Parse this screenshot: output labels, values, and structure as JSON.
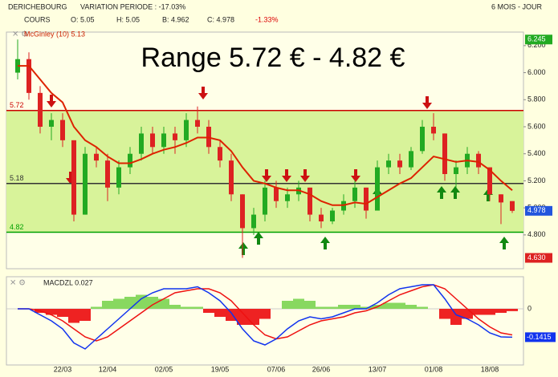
{
  "header": {
    "symbol": "DERICHEBOURG",
    "variation": "VARIATION PERIODE : -17.03%",
    "period": "6 MOIS - JOUR",
    "cours": "COURS",
    "open": "O: 5.05",
    "high": "H: 5.05",
    "low": "B: 4.962",
    "close": "C: 4.978",
    "change": "-1.33%"
  },
  "chart_data": [
    {
      "type": "candlestick",
      "title": "Range 5.72 € - 4.82 €",
      "indicator_label": "McGinley (10) 5.13",
      "categories": [
        null,
        null,
        null,
        null,
        "22/03",
        null,
        null,
        null,
        "12/04",
        null,
        null,
        null,
        null,
        "02/05",
        null,
        null,
        null,
        null,
        "19/05",
        null,
        null,
        null,
        null,
        "07/06",
        null,
        null,
        null,
        "26/06",
        null,
        null,
        null,
        null,
        "13/07",
        null,
        null,
        null,
        null,
        "01/08",
        null,
        null,
        null,
        null,
        "18/08",
        null,
        null
      ],
      "open": [
        6.0,
        6.1,
        5.85,
        5.6,
        5.65,
        5.5,
        4.95,
        5.4,
        5.35,
        5.15,
        5.3,
        5.4,
        5.55,
        5.45,
        5.55,
        5.5,
        5.65,
        5.6,
        5.45,
        5.35,
        5.1,
        4.85,
        4.95,
        5.15,
        5.05,
        5.1,
        5.15,
        4.95,
        4.9,
        4.98,
        5.05,
        5.15,
        4.98,
        5.3,
        5.35,
        5.3,
        5.42,
        5.6,
        5.55,
        5.25,
        5.3,
        5.4,
        5.3,
        5.1,
        5.05
      ],
      "high": [
        6.245,
        6.15,
        5.9,
        5.7,
        5.7,
        5.5,
        5.45,
        5.45,
        5.4,
        5.35,
        5.45,
        5.6,
        5.6,
        5.6,
        5.6,
        5.7,
        5.75,
        5.65,
        5.5,
        5.4,
        5.1,
        5.0,
        5.2,
        5.2,
        5.15,
        5.2,
        5.15,
        5.0,
        5.0,
        5.1,
        5.2,
        5.15,
        5.35,
        5.4,
        5.4,
        5.45,
        5.65,
        5.7,
        5.55,
        5.35,
        5.45,
        5.42,
        5.3,
        5.1,
        5.05
      ],
      "low": [
        5.95,
        5.8,
        5.55,
        5.5,
        5.45,
        4.9,
        4.95,
        5.3,
        5.05,
        5.1,
        5.25,
        5.35,
        5.4,
        5.4,
        5.4,
        5.45,
        5.55,
        5.4,
        5.3,
        5.05,
        4.63,
        4.8,
        4.9,
        5.0,
        5.0,
        5.05,
        4.9,
        4.85,
        4.88,
        4.95,
        5.0,
        4.92,
        4.98,
        5.25,
        5.25,
        5.28,
        5.4,
        5.5,
        5.2,
        5.15,
        5.25,
        5.25,
        5.05,
        4.88,
        4.962
      ],
      "close": [
        6.1,
        5.85,
        5.6,
        5.65,
        5.5,
        4.95,
        5.4,
        5.35,
        5.15,
        5.3,
        5.4,
        5.55,
        5.45,
        5.55,
        5.5,
        5.65,
        5.6,
        5.45,
        5.35,
        5.1,
        4.85,
        4.95,
        5.15,
        5.05,
        5.1,
        5.15,
        4.95,
        4.9,
        4.98,
        5.05,
        5.15,
        4.98,
        5.3,
        5.35,
        5.3,
        5.42,
        5.6,
        5.55,
        5.25,
        5.3,
        5.4,
        5.3,
        5.1,
        5.04,
        4.978
      ],
      "up_color": "#22aa22",
      "down_color": "#dd2222",
      "indicator": {
        "color": "#dd2200",
        "values": [
          6.05,
          6.05,
          5.95,
          5.85,
          5.78,
          5.6,
          5.5,
          5.45,
          5.38,
          5.33,
          5.33,
          5.36,
          5.4,
          5.43,
          5.45,
          5.48,
          5.52,
          5.52,
          5.5,
          5.42,
          5.3,
          5.2,
          5.18,
          5.15,
          5.13,
          5.13,
          5.1,
          5.05,
          5.02,
          5.02,
          5.04,
          5.03,
          5.08,
          5.13,
          5.18,
          5.22,
          5.3,
          5.38,
          5.36,
          5.34,
          5.35,
          5.34,
          5.28,
          5.2,
          5.13
        ]
      },
      "levels": [
        {
          "value": 5.72,
          "label": "5.72",
          "color": "#cc0000"
        },
        {
          "value": 5.18,
          "label": "5.18",
          "color": "#333333"
        },
        {
          "value": 4.82,
          "label": "4.82",
          "color": "#00a000"
        }
      ],
      "band_color": "#d8f39a",
      "markers": [
        {
          "value": 6.245,
          "label": "6.245",
          "color": "#22aa22"
        },
        {
          "value": 4.978,
          "label": "4.978",
          "color": "#2255dd"
        },
        {
          "value": 4.63,
          "label": "4.630",
          "color": "#dd2222"
        }
      ],
      "ylim": [
        4.55,
        6.3
      ],
      "yticks": [
        {
          "value": 6.2,
          "label": "6.200"
        },
        {
          "value": 6.0,
          "label": "6.000"
        },
        {
          "value": 5.8,
          "label": "5.800"
        },
        {
          "value": 5.6,
          "label": "5.600"
        },
        {
          "value": 5.4,
          "label": "5.400"
        },
        {
          "value": 5.2,
          "label": "5.200"
        },
        {
          "value": 5.0,
          "label": "5.000"
        },
        {
          "value": 4.8,
          "label": "4.800"
        }
      ]
    },
    {
      "type": "macd",
      "title": "MACDZL 0.027",
      "macd": {
        "color": "#1133ee",
        "values": [
          0.0,
          0.0,
          -0.03,
          -0.06,
          -0.1,
          -0.17,
          -0.2,
          -0.15,
          -0.1,
          -0.05,
          0.0,
          0.05,
          0.08,
          0.1,
          0.1,
          0.1,
          0.11,
          0.08,
          0.04,
          -0.02,
          -0.1,
          -0.16,
          -0.18,
          -0.15,
          -0.1,
          -0.06,
          -0.04,
          -0.05,
          -0.04,
          -0.02,
          0.0,
          0.0,
          0.03,
          0.07,
          0.1,
          0.11,
          0.12,
          0.12,
          0.05,
          -0.03,
          -0.05,
          -0.08,
          -0.12,
          -0.14,
          -0.1415
        ]
      },
      "signal": {
        "color": "#ee1111",
        "values": [
          0.0,
          0.0,
          -0.01,
          -0.03,
          -0.06,
          -0.1,
          -0.14,
          -0.16,
          -0.14,
          -0.1,
          -0.06,
          -0.02,
          0.02,
          0.05,
          0.08,
          0.09,
          0.1,
          0.1,
          0.08,
          0.04,
          -0.02,
          -0.08,
          -0.13,
          -0.15,
          -0.14,
          -0.11,
          -0.08,
          -0.06,
          -0.05,
          -0.04,
          -0.02,
          -0.01,
          0.01,
          0.04,
          0.07,
          0.09,
          0.11,
          0.12,
          0.1,
          0.05,
          0.0,
          -0.05,
          -0.09,
          -0.12,
          -0.13
        ]
      },
      "histogram": {
        "up_color": "#88d860",
        "down_color": "#ee2222",
        "values": [
          0,
          0,
          -0.02,
          -0.03,
          -0.04,
          -0.07,
          -0.06,
          0.01,
          0.04,
          0.05,
          0.06,
          0.07,
          0.06,
          0.05,
          0.02,
          0.01,
          0.01,
          -0.02,
          -0.04,
          -0.06,
          -0.08,
          -0.08,
          -0.05,
          0,
          0.04,
          0.05,
          0.04,
          0.01,
          0.01,
          0.02,
          0.02,
          0.01,
          0.02,
          0.03,
          0.03,
          0.02,
          0.01,
          0,
          -0.05,
          -0.08,
          -0.05,
          -0.03,
          -0.03,
          -0.02,
          -0.0115
        ]
      },
      "last_value": -0.1415,
      "ylim": [
        -0.28,
        0.16
      ],
      "yticks": [
        0
      ]
    }
  ]
}
